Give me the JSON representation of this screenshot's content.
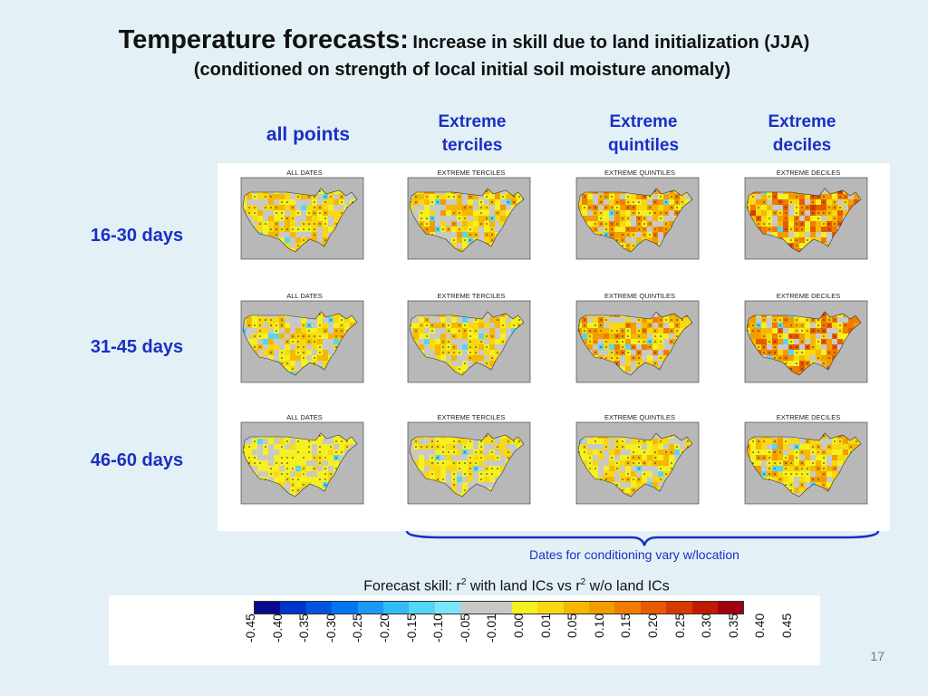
{
  "title": {
    "main": "Temperature forecasts",
    "colon": ":",
    "rest": "Increase in skill due to land initialization (JJA)",
    "subtitle": "(conditioned on strength of local initial soil moisture anomaly)"
  },
  "columns": [
    {
      "label": "all points"
    },
    {
      "label": "Extreme terciles"
    },
    {
      "label": "Extreme quintiles"
    },
    {
      "label": "Extreme deciles"
    }
  ],
  "rows": [
    {
      "label": "16-30 days"
    },
    {
      "label": "31-45 days"
    },
    {
      "label": "46-60 days"
    }
  ],
  "map_titles": [
    "ALL DATES",
    "EXTREME TERCILES",
    "EXTREME QUINTILES",
    "EXTREME DECILES"
  ],
  "map_intensity": [
    [
      0.35,
      0.4,
      0.55,
      0.75
    ],
    [
      0.3,
      0.35,
      0.55,
      0.7
    ],
    [
      0.15,
      0.2,
      0.3,
      0.45
    ]
  ],
  "note": "Dates for conditioning vary w/location",
  "skill_label": {
    "pre": "Forecast skill: r",
    "sup1": "2",
    "mid": " with land ICs vs r",
    "sup2": "2",
    "post": " w/o land ICs"
  },
  "colorbar": {
    "colors": [
      "#0a0a8c",
      "#0033cc",
      "#0055e0",
      "#0077f0",
      "#1a99f5",
      "#33bbf8",
      "#55d5fa",
      "#7ae6fc",
      "#c8c8c8",
      "#c8c8c8",
      "#f5f020",
      "#f8d810",
      "#f5b800",
      "#f39c00",
      "#f07c00",
      "#e85a00",
      "#d63a00",
      "#c21800",
      "#a00010"
    ],
    "ticks": [
      "-0.45",
      "-0.40",
      "-0.35",
      "-0.30",
      "-0.25",
      "-0.20",
      "-0.15",
      "-0.10",
      "-0.05",
      "-0.01",
      "0.00",
      "0.01",
      "0.05",
      "0.10",
      "0.15",
      "0.20",
      "0.25",
      "0.30",
      "0.35",
      "0.40",
      "0.45"
    ]
  },
  "page_number": "17"
}
